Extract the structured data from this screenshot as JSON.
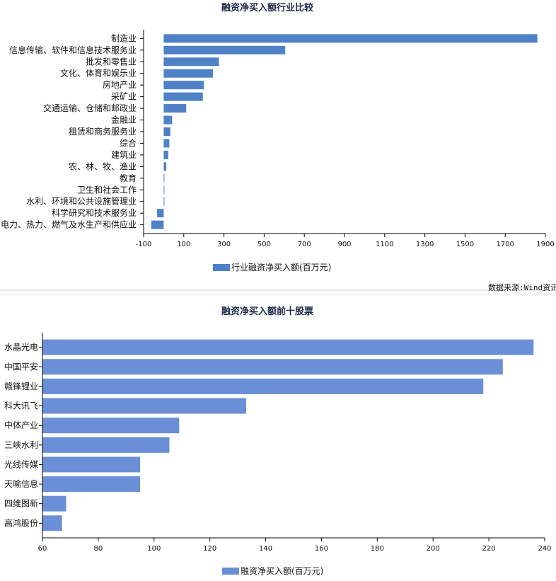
{
  "source_text": "数据来源:Wind资讯",
  "chart_data": [
    {
      "type": "bar",
      "orientation": "horizontal",
      "title": "融资净买入额行业比较",
      "categories": [
        "制造业",
        "信息传输、软件和信息技术服务业",
        "批发和零售业",
        "文化、体育和娱乐业",
        "房地产业",
        "采矿业",
        "交通运输、仓储和邮政业",
        "金融业",
        "租赁和商务服务业",
        "综合",
        "建筑业",
        "农、林、牧、渔业",
        "教育",
        "卫生和社会工作",
        "水利、环境和公共设施管理业",
        "科学研究和技术服务业",
        "电力、热力、燃气及水生产和供应业"
      ],
      "series": [
        {
          "name": "行业融资净买入额(百万元)",
          "values": [
            1860,
            605,
            275,
            245,
            200,
            195,
            112,
            42,
            33,
            28,
            23,
            13,
            2,
            1,
            1,
            -33,
            -62
          ]
        }
      ],
      "xlim": [
        -100,
        1900
      ],
      "xticks": [
        -100,
        100,
        300,
        500,
        700,
        900,
        1100,
        1300,
        1500,
        1700,
        1900
      ],
      "color": "#4f81c7",
      "grid": false,
      "legend_position": "bottom"
    },
    {
      "type": "bar",
      "orientation": "horizontal",
      "title": "融资净买入额前十股票",
      "categories": [
        "水晶光电",
        "中国平安",
        "赣锋锂业",
        "科大讯飞",
        "中体产业",
        "三峡水利",
        "光线传媒",
        "天喻信息",
        "四维图新",
        "高鸿股份"
      ],
      "series": [
        {
          "name": "融资净买入额(百万元)",
          "values": [
            236,
            225,
            218,
            133,
            109,
            105.5,
            95,
            95,
            68.5,
            67
          ]
        }
      ],
      "xlim": [
        60,
        240
      ],
      "xticks": [
        60,
        80,
        100,
        120,
        140,
        160,
        180,
        200,
        220,
        240
      ],
      "color": "#6b8fd6",
      "grid": false,
      "legend_position": "bottom"
    }
  ]
}
